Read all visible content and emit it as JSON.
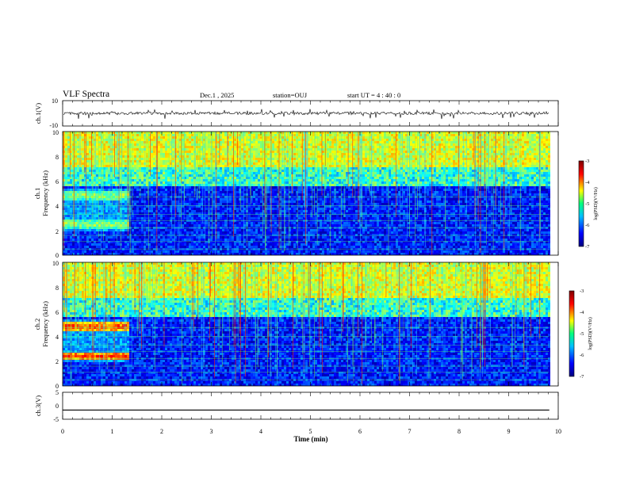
{
  "header": {
    "title": "VLF Spectra",
    "date": "Dec.1 , 2025",
    "station": "station=OUJ",
    "start_ut": "start UT = 4 : 40 : 0"
  },
  "chart_data": {
    "type": "heatmap",
    "title": "VLF Spectra",
    "xlabel": "Time (min)",
    "xlim": [
      0,
      10
    ],
    "x_ticks": [
      "0",
      "1",
      "2",
      "3",
      "4",
      "5",
      "6",
      "7",
      "8",
      "9",
      "10"
    ],
    "data_end_min": 9.82,
    "panels": [
      {
        "id": "ch1-waveform",
        "type": "line",
        "ylabel": "ch.1(V)",
        "ylim": [
          -10,
          10
        ],
        "y_ticks": [
          "10",
          "-10"
        ],
        "baseline_v": 0
      },
      {
        "id": "ch1-spectrogram",
        "type": "heatmap",
        "ylabel": "ch.1 Frequency (kHz)",
        "ylabel_ch": "ch.1",
        "ylabel_freq": "Frequency (kHz)",
        "ylim": [
          0,
          10
        ],
        "y_ticks": [
          "0",
          "2",
          "4",
          "6",
          "8",
          "10"
        ],
        "bands_khz": [
          4.9,
          2.6
        ],
        "band_end_min": 1.3,
        "colorbar": {
          "label": "log(PSD)(V²/Hz)",
          "range": [
            -7,
            -3
          ],
          "ticks": [
            "-3",
            "-4",
            "-5",
            "-6",
            "-7"
          ]
        }
      },
      {
        "id": "ch2-spectrogram",
        "type": "heatmap",
        "ylabel": "ch.2 Frequency (kHz)",
        "ylabel_ch": "ch.2",
        "ylabel_freq": "Frequency (kHz)",
        "ylim": [
          0,
          10
        ],
        "y_ticks": [
          "0",
          "2",
          "4",
          "6",
          "8",
          "10"
        ],
        "bands_khz": [
          4.9,
          2.5
        ],
        "band_end_min": 1.3,
        "colorbar": {
          "label": "log(PSD)(V²/Hz)",
          "range": [
            -7,
            -3
          ],
          "ticks": [
            "-3",
            "-4",
            "-5",
            "-6",
            "-7"
          ]
        }
      },
      {
        "id": "ch3-waveform",
        "type": "line",
        "ylabel": "ch.3(V)",
        "ylim": [
          -5,
          5
        ],
        "y_ticks": [
          "5",
          "0",
          "-5"
        ],
        "baseline_v": -1.6
      }
    ]
  },
  "colors": {
    "axis": "#000000",
    "trace": "#000000",
    "cmap_low": "#00007f",
    "cmap_mid": "#00ff7f",
    "cmap_high": "#7f0000"
  }
}
